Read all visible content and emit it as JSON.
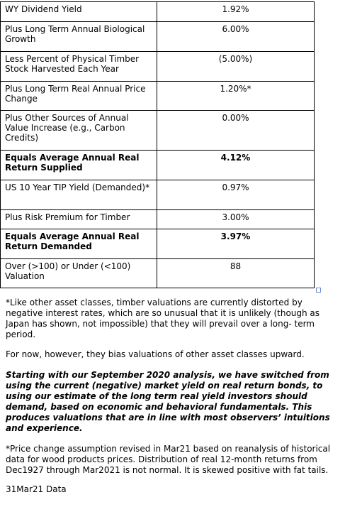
{
  "table": {
    "rows": [
      [
        "WY Dividend Yield",
        "1.92%"
      ],
      [
        "Plus Long Term Annual Biological Growth",
        "6.00%"
      ],
      [
        "Less Percent of Physical Timber Stock Harvested Each Year",
        "(5.00%)"
      ],
      [
        "Plus Long Term Real Annual Price Change",
        "1.20%*"
      ],
      [
        "Plus Other Sources of Annual Value Increase (e.g., Carbon Credits)",
        "0.00%"
      ],
      [
        "Equals Average Annual Real Return Supplied",
        "4.12%"
      ],
      [
        "US 10 Year TIP Yield (Demanded)*",
        "0.97%"
      ],
      [
        "Plus Risk Premium for Timber",
        "3.00%"
      ],
      [
        "Equals Average Annual Real Return Demanded",
        "3.97%"
      ],
      [
        "Over (>100) or Under (<100) Valuation",
        "88"
      ]
    ]
  },
  "notes": [
    "*Like other asset classes, timber valuations are currently distorted by negative interest rates, which are so unusual that it is unlikely (though as Japan has shown, not impossible) that they will prevail over a long- term period.",
    "For now, however, they bias valuations of other asset classes upward.",
    "Starting with our September 2020 analysis, we have switched from using the current (negative) market yield on real return bonds, to using our estimate of the long term real yield investors should demand, based on economic and behavioral fundamentals. This produces valuations that are in line with most observers’ intuitions and experience.",
    "*Price change assumption revised in Mar21 based on reanalysis of historical data for wood products prices. Distribution of real 12-month returns from Dec1927 through Mar2021 is not normal. It is skewed positive with fat tails.",
    "31Mar21 Data"
  ]
}
